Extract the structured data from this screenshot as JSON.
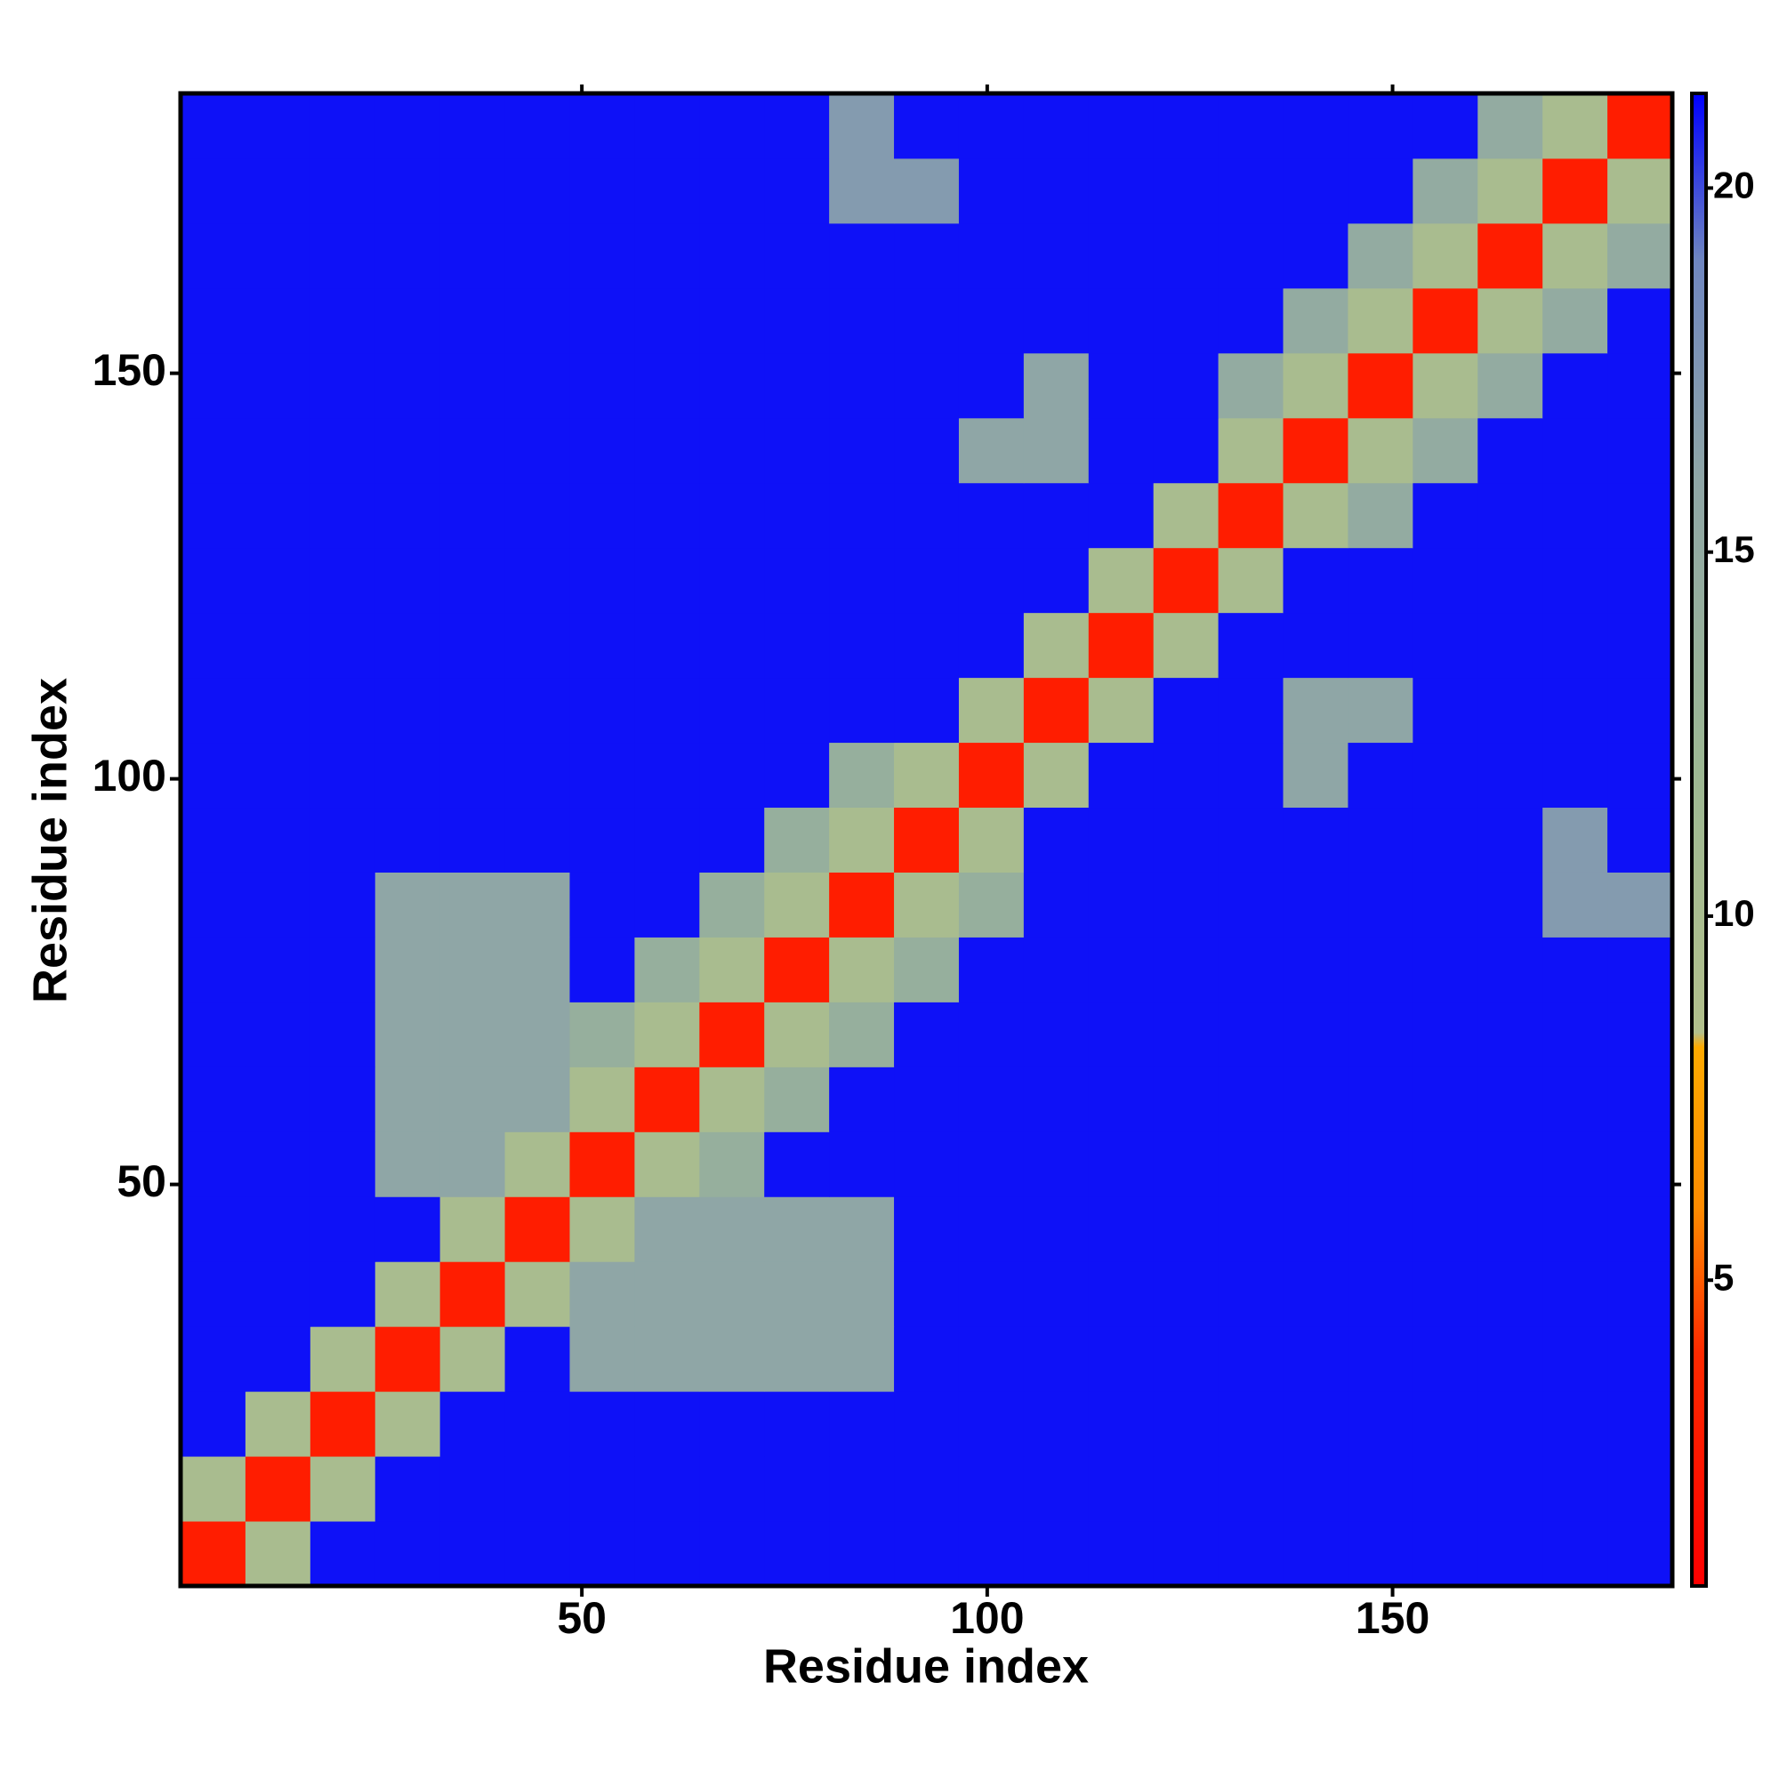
{
  "chart_data": {
    "type": "heatmap",
    "x_label": "Residue index",
    "y_label": "Residue index",
    "x": [
      4.5,
      12.5,
      20.5,
      28.5,
      36.5,
      44.5,
      52.5,
      60.5,
      68.5,
      76.5,
      84.5,
      92.5,
      100.5,
      108.5,
      116.5,
      124.5,
      132.5,
      140.5,
      148.5,
      156.5,
      164.5,
      172.5,
      180.5
    ],
    "y": [
      4.5,
      12.5,
      20.5,
      28.5,
      36.5,
      44.5,
      52.5,
      60.5,
      68.5,
      76.5,
      84.5,
      92.5,
      100.5,
      108.5,
      116.5,
      124.5,
      132.5,
      140.5,
      148.5,
      156.5,
      164.5,
      172.5,
      180.5
    ],
    "z": [
      [
        3,
        10,
        21,
        21,
        21,
        21,
        21,
        21,
        21,
        21,
        21,
        21,
        21,
        21,
        21,
        21,
        21,
        21,
        21,
        21,
        21,
        21,
        21
      ],
      [
        10,
        3,
        10,
        21,
        21,
        21,
        21,
        21,
        21,
        21,
        21,
        21,
        21,
        21,
        21,
        21,
        21,
        21,
        21,
        21,
        21,
        21,
        21
      ],
      [
        21,
        10,
        3,
        10,
        21,
        21,
        21,
        21,
        21,
        21,
        21,
        21,
        21,
        21,
        21,
        21,
        21,
        21,
        21,
        21,
        21,
        21,
        21
      ],
      [
        21,
        21,
        10,
        3,
        10,
        21,
        16,
        16,
        16,
        16,
        16,
        21,
        21,
        21,
        21,
        21,
        21,
        21,
        21,
        21,
        21,
        21,
        21
      ],
      [
        21,
        21,
        21,
        10,
        3,
        10,
        16,
        16,
        16,
        16,
        16,
        21,
        21,
        21,
        21,
        21,
        21,
        21,
        21,
        21,
        21,
        21,
        21
      ],
      [
        21,
        21,
        21,
        21,
        10,
        3,
        10,
        16,
        16,
        16,
        16,
        21,
        21,
        21,
        21,
        21,
        21,
        21,
        21,
        21,
        21,
        21,
        21
      ],
      [
        21,
        21,
        21,
        16,
        16,
        10,
        3,
        10,
        14,
        21,
        21,
        21,
        21,
        21,
        21,
        21,
        21,
        21,
        21,
        21,
        21,
        21,
        21
      ],
      [
        21,
        21,
        21,
        16,
        16,
        16,
        10,
        3,
        10,
        14,
        21,
        21,
        21,
        21,
        21,
        21,
        21,
        21,
        21,
        21,
        21,
        21,
        21
      ],
      [
        21,
        21,
        21,
        16,
        16,
        16,
        14,
        10,
        3,
        10,
        14,
        21,
        21,
        21,
        21,
        21,
        21,
        21,
        21,
        21,
        21,
        21,
        21
      ],
      [
        21,
        21,
        21,
        16,
        16,
        16,
        21,
        14,
        10,
        3,
        10,
        14,
        21,
        21,
        21,
        21,
        21,
        21,
        21,
        21,
        21,
        21,
        21
      ],
      [
        21,
        21,
        21,
        16,
        16,
        16,
        21,
        21,
        14,
        10,
        3,
        10,
        14,
        21,
        21,
        21,
        21,
        21,
        21,
        21,
        21,
        17,
        17
      ],
      [
        21,
        21,
        21,
        21,
        21,
        21,
        21,
        21,
        21,
        14,
        10,
        3,
        10,
        21,
        21,
        21,
        21,
        21,
        21,
        21,
        21,
        17,
        21
      ],
      [
        21,
        21,
        21,
        21,
        21,
        21,
        21,
        21,
        21,
        21,
        14,
        10,
        3,
        10,
        21,
        21,
        21,
        16,
        21,
        21,
        21,
        21,
        21
      ],
      [
        21,
        21,
        21,
        21,
        21,
        21,
        21,
        21,
        21,
        21,
        21,
        21,
        10,
        3,
        10,
        21,
        21,
        16,
        16,
        21,
        21,
        21,
        21
      ],
      [
        21,
        21,
        21,
        21,
        21,
        21,
        21,
        21,
        21,
        21,
        21,
        21,
        21,
        10,
        3,
        10,
        21,
        21,
        21,
        21,
        21,
        21,
        21
      ],
      [
        21,
        21,
        21,
        21,
        21,
        21,
        21,
        21,
        21,
        21,
        21,
        21,
        21,
        21,
        10,
        3,
        10,
        21,
        21,
        21,
        21,
        21,
        21
      ],
      [
        21,
        21,
        21,
        21,
        21,
        21,
        21,
        21,
        21,
        21,
        21,
        21,
        21,
        21,
        21,
        10,
        3,
        10,
        15,
        21,
        21,
        21,
        21
      ],
      [
        21,
        21,
        21,
        21,
        21,
        21,
        21,
        21,
        21,
        21,
        21,
        21,
        16,
        16,
        21,
        21,
        10,
        3,
        10,
        15,
        21,
        21,
        21
      ],
      [
        21,
        21,
        21,
        21,
        21,
        21,
        21,
        21,
        21,
        21,
        21,
        21,
        21,
        16,
        21,
        21,
        15,
        10,
        3,
        10,
        15,
        21,
        21
      ],
      [
        21,
        21,
        21,
        21,
        21,
        21,
        21,
        21,
        21,
        21,
        21,
        21,
        21,
        21,
        21,
        21,
        21,
        15,
        10,
        3,
        10,
        15,
        21
      ],
      [
        21,
        21,
        21,
        21,
        21,
        21,
        21,
        21,
        21,
        21,
        21,
        21,
        21,
        21,
        21,
        21,
        21,
        21,
        15,
        10,
        3,
        10,
        15
      ],
      [
        21,
        21,
        21,
        21,
        21,
        21,
        21,
        21,
        21,
        21,
        17,
        17,
        21,
        21,
        21,
        21,
        21,
        21,
        21,
        15,
        10,
        3,
        10
      ],
      [
        21,
        21,
        21,
        21,
        21,
        21,
        21,
        21,
        21,
        21,
        17,
        21,
        21,
        21,
        21,
        21,
        21,
        21,
        21,
        21,
        15,
        10,
        3
      ]
    ],
    "xlim": [
      0.5,
      184.5
    ],
    "ylim": [
      0.5,
      184.5
    ],
    "xticks": [
      50,
      100,
      150
    ],
    "yticks": [
      50,
      100,
      150
    ],
    "colorbar": {
      "zlim": [
        0.8,
        21.3
      ],
      "ticks": [
        5,
        10,
        15,
        20
      ],
      "stops": [
        {
          "value": 0.8,
          "color": "#ff0000"
        },
        {
          "value": 4,
          "color": "#ff2a00"
        },
        {
          "value": 6,
          "color": "#ff8c00"
        },
        {
          "value": 8.2,
          "color": "#ffaa00"
        },
        {
          "value": 8.4,
          "color": "#b2c08c"
        },
        {
          "value": 12,
          "color": "#9db893"
        },
        {
          "value": 16,
          "color": "#8fa6a6"
        },
        {
          "value": 19,
          "color": "#6f86c0"
        },
        {
          "value": 21.3,
          "color": "#0000ff"
        }
      ]
    }
  }
}
